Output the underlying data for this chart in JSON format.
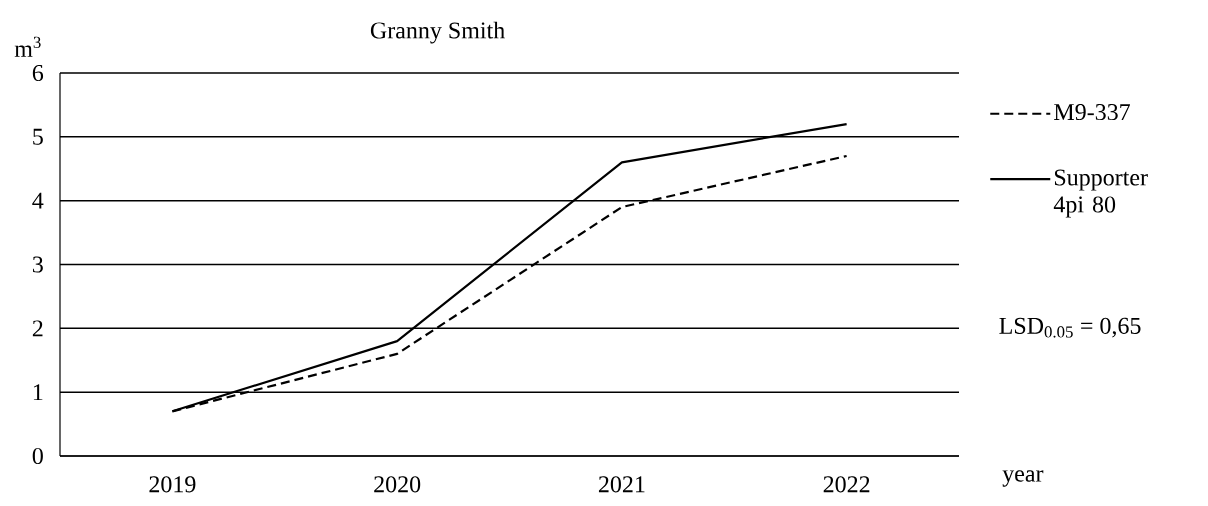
{
  "chart_data": {
    "type": "line",
    "title": "Granny Smith",
    "ylabel": "m$^{3}$",
    "xlabel": "year",
    "categories": [
      "2019",
      "2020",
      "2021",
      "2022"
    ],
    "series": [
      {
        "name": "M9-337",
        "color": "#000000",
        "line_style": "dashed",
        "values": [
          0.7,
          1.6,
          3.9,
          4.7
        ]
      },
      {
        "name": "Supporter 4pi 80",
        "color": "#000000",
        "line_style": "solid",
        "values": [
          0.7,
          1.8,
          4.6,
          5.2
        ]
      }
    ],
    "ylim": [
      0,
      6
    ],
    "yticks": [
      0,
      1,
      2,
      3,
      4,
      5,
      6
    ],
    "grid": "y",
    "legend": "right",
    "marker": "none",
    "annotations": [
      "LSD$_{0.05}$ = 0,65"
    ]
  }
}
